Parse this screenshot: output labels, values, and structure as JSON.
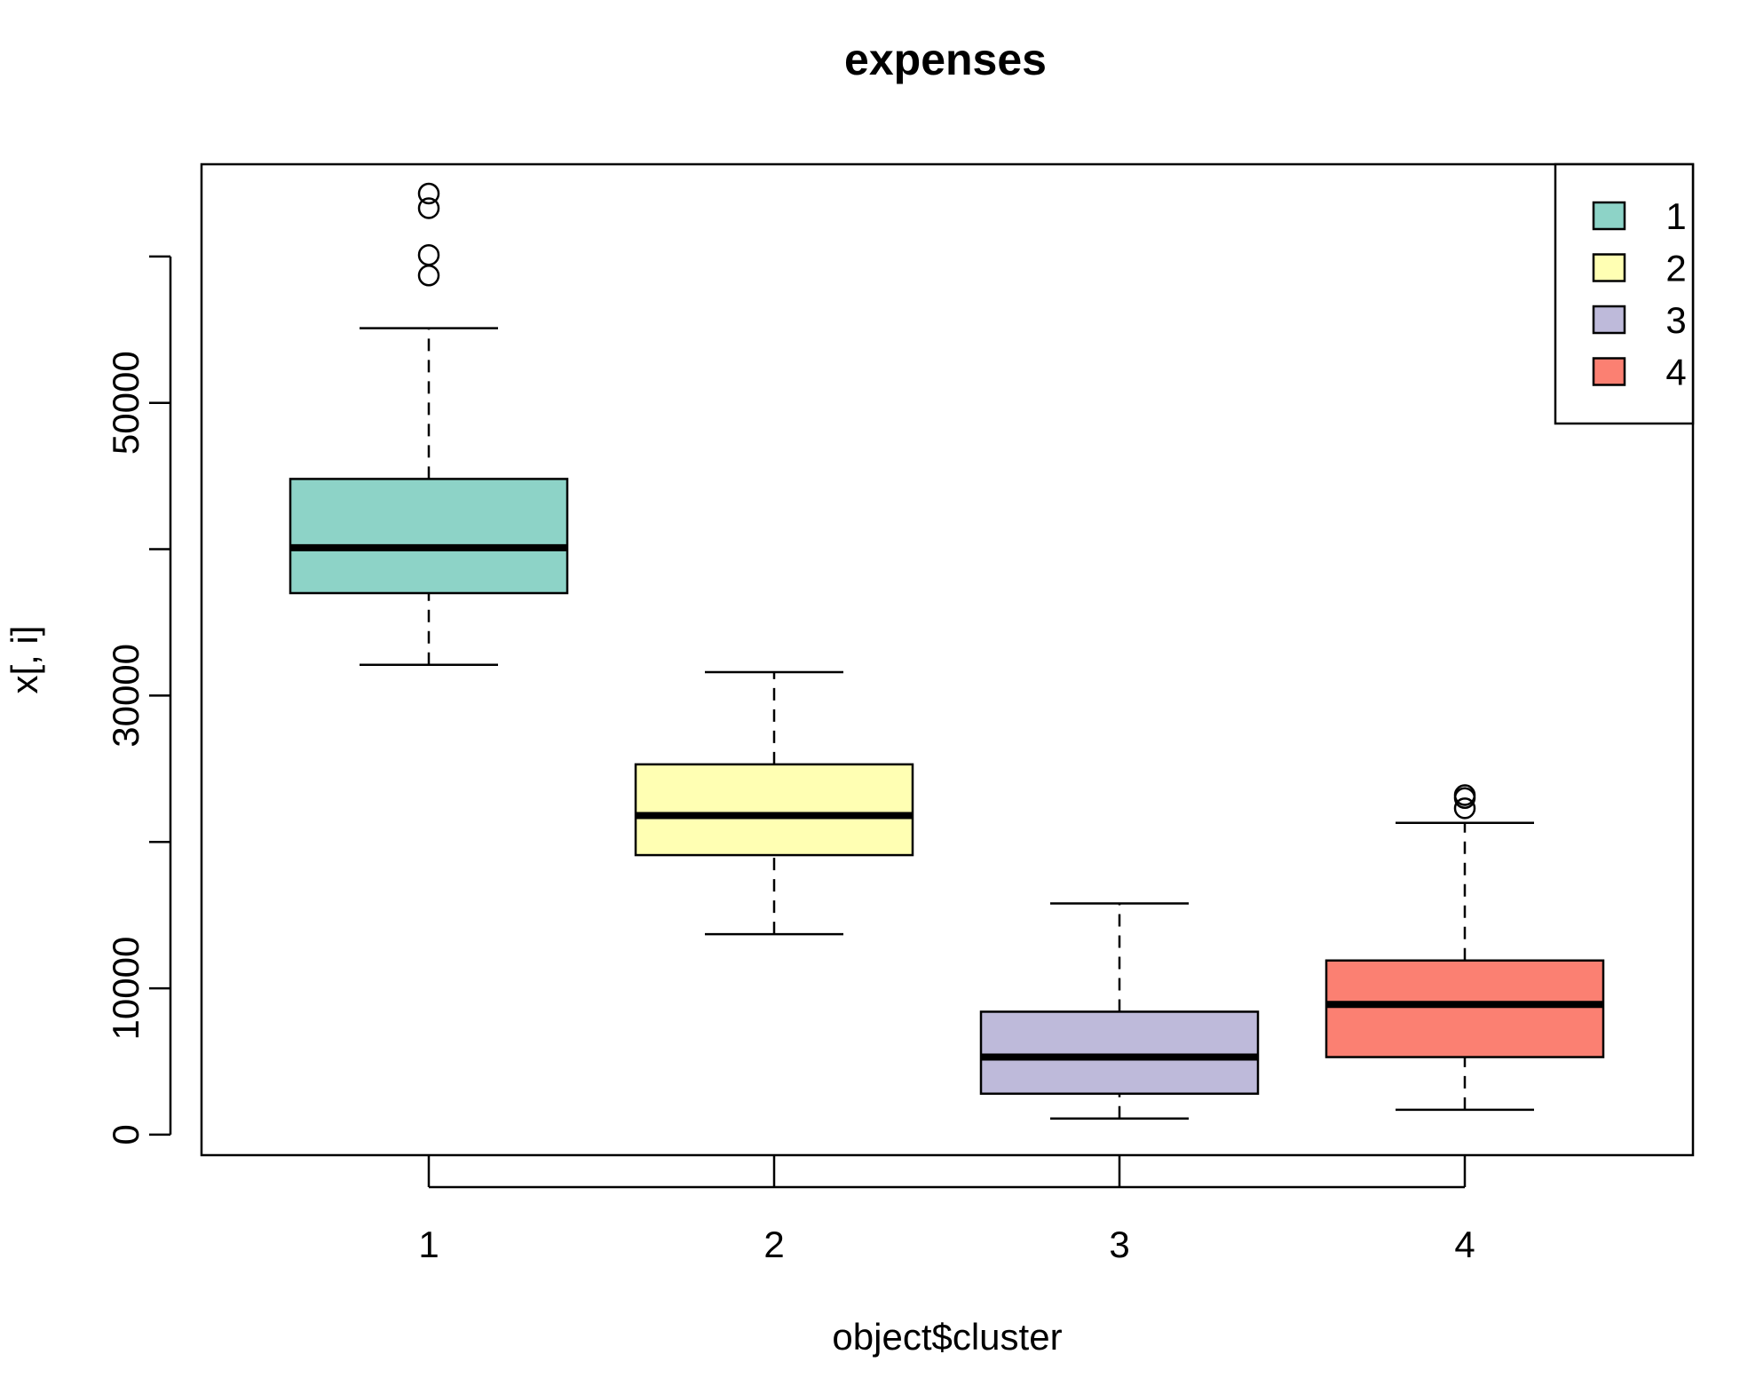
{
  "chart_data": {
    "type": "box",
    "title": "expenses",
    "xlabel": "object$cluster",
    "ylabel": "x[, i]",
    "categories": [
      "1",
      "2",
      "3",
      "4"
    ],
    "y_ticks": [
      0,
      10000,
      20000,
      30000,
      40000,
      50000,
      60000
    ],
    "y_tick_labels": [
      "0",
      "10000",
      "",
      "30000",
      "",
      "50000",
      ""
    ],
    "ylim": [
      -1400,
      66300
    ],
    "boxes": [
      {
        "category": "1",
        "color": "#8DD3C7",
        "whisker_low": 32100,
        "q1": 37000,
        "median": 40100,
        "q3": 44800,
        "whisker_high": 55100,
        "outliers": [
          58700,
          60100,
          63300,
          64300
        ]
      },
      {
        "category": "2",
        "color": "#FFFFB3",
        "whisker_low": 13700,
        "q1": 19100,
        "median": 21800,
        "q3": 25300,
        "whisker_high": 31600,
        "outliers": []
      },
      {
        "category": "3",
        "color": "#BEBADA",
        "whisker_low": 1100,
        "q1": 2800,
        "median": 5300,
        "q3": 8400,
        "whisker_high": 15800,
        "outliers": []
      },
      {
        "category": "4",
        "color": "#FB8072",
        "whisker_low": 1700,
        "q1": 5300,
        "median": 8900,
        "q3": 11900,
        "whisker_high": 21300,
        "outliers": [
          22300,
          23000,
          23200
        ]
      }
    ],
    "grid": false,
    "legend": {
      "position": "top-right",
      "entries": [
        {
          "label": "1",
          "color": "#8DD3C7"
        },
        {
          "label": "2",
          "color": "#FFFFB3"
        },
        {
          "label": "3",
          "color": "#BEBADA"
        },
        {
          "label": "4",
          "color": "#FB8072"
        }
      ]
    }
  }
}
